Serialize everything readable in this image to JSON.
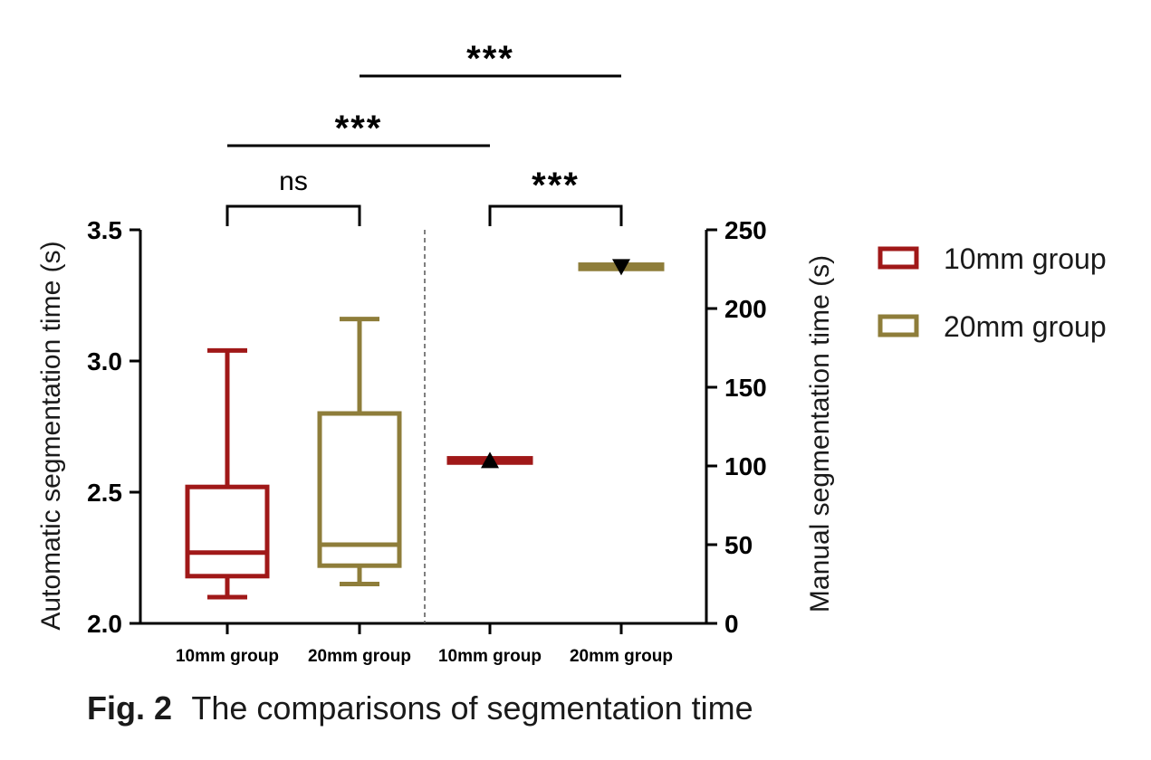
{
  "chart_data": {
    "type": "box",
    "caption": {
      "label": "Fig. 2",
      "text": "The comparisons of segmentation time"
    },
    "left_axis": {
      "label": "Automatic segmentation time (s)",
      "range": [
        2.0,
        3.5
      ],
      "ticks": [
        "2.0",
        "2.5",
        "3.0",
        "3.5"
      ]
    },
    "right_axis": {
      "label": "Manual segmentation time (s)",
      "range": [
        0,
        250
      ],
      "ticks": [
        "0",
        "50",
        "100",
        "150",
        "200",
        "250"
      ]
    },
    "categories": [
      "10mm group",
      "20mm group",
      "10mm group",
      "20mm group"
    ],
    "legend": [
      {
        "name": "10mm group",
        "color": "#a01818"
      },
      {
        "name": "20mm group",
        "color": "#8e7d3a"
      }
    ],
    "automatic": [
      {
        "group": "10mm group",
        "color": "#a01818",
        "min": 2.1,
        "q1": 2.18,
        "median": 2.27,
        "q3": 2.52,
        "max": 3.04
      },
      {
        "group": "20mm group",
        "color": "#8e7d3a",
        "min": 2.15,
        "q1": 2.22,
        "median": 2.3,
        "q3": 2.8,
        "max": 3.16
      }
    ],
    "manual": [
      {
        "group": "10mm group",
        "color": "#a01818",
        "min": 101,
        "q1": 102,
        "median": 104,
        "q3": 106,
        "max": 106,
        "marker": "triangle-up"
      },
      {
        "group": "20mm group",
        "color": "#8e7d3a",
        "min": 224,
        "q1": 225,
        "median": 227,
        "q3": 229,
        "max": 229,
        "marker": "triangle-down"
      }
    ],
    "significance": [
      {
        "label": "ns",
        "from": 0,
        "to": 1,
        "style": "bracket",
        "level": 0
      },
      {
        "label": "***",
        "from": 2,
        "to": 3,
        "style": "bracket",
        "level": 0
      },
      {
        "label": "***",
        "from": 0,
        "to": 2,
        "style": "line",
        "level": 1
      },
      {
        "label": "***",
        "from": 1,
        "to": 3,
        "style": "line",
        "level": 2
      }
    ]
  }
}
